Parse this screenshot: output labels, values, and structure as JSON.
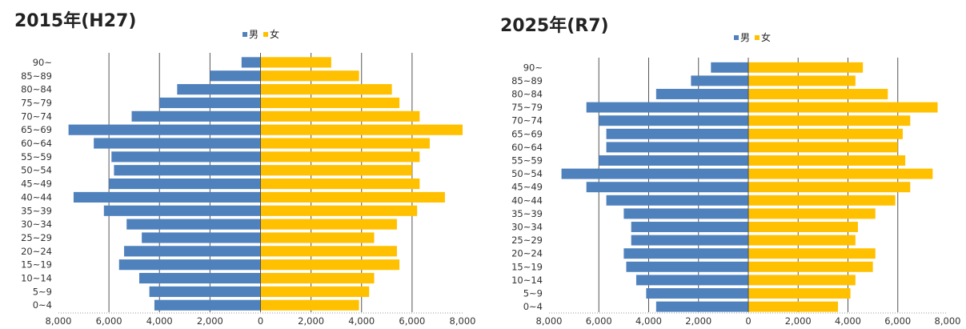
{
  "colors": {
    "male": "#4f81bd",
    "female": "#ffc000",
    "grid": "#555555"
  },
  "chart_data": [
    {
      "type": "bar",
      "orientation": "horizontal",
      "title": "2015年(H27)",
      "legend": [
        "男",
        "女"
      ],
      "categories": [
        "0~4",
        "5~9",
        "10~14",
        "15~19",
        "20~24",
        "25~29",
        "30~34",
        "35~39",
        "40~44",
        "45~49",
        "50~54",
        "55~59",
        "60~64",
        "65~69",
        "70~74",
        "75~79",
        "80~84",
        "85~89",
        "90~"
      ],
      "series": [
        {
          "name": "男",
          "values": [
            4200,
            4400,
            4800,
            5600,
            5400,
            4700,
            5300,
            6200,
            7400,
            6000,
            5800,
            5900,
            6600,
            7600,
            5100,
            4000,
            3300,
            2000,
            750
          ]
        },
        {
          "name": "女",
          "values": [
            3900,
            4300,
            4500,
            5500,
            5400,
            4500,
            5400,
            6200,
            7300,
            6300,
            6000,
            6300,
            6700,
            8000,
            6300,
            5500,
            5200,
            3900,
            2800
          ]
        }
      ],
      "xlim": [
        -8000,
        8000
      ],
      "xticks": [
        "8,000",
        "6,000",
        "4,000",
        "2,000",
        "0",
        "2,000",
        "4,000",
        "6,000",
        "8,000"
      ]
    },
    {
      "type": "bar",
      "orientation": "horizontal",
      "title": "2025年(R7)",
      "legend": [
        "男",
        "女"
      ],
      "categories": [
        "0~4",
        "5~9",
        "10~14",
        "15~19",
        "20~24",
        "25~29",
        "30~34",
        "35~39",
        "40~44",
        "45~49",
        "50~54",
        "55~59",
        "60~64",
        "65~69",
        "70~74",
        "75~79",
        "80~84",
        "85~89",
        "90~"
      ],
      "series": [
        {
          "name": "男",
          "values": [
            3700,
            4100,
            4500,
            4900,
            5000,
            4700,
            4700,
            5000,
            5700,
            6500,
            7500,
            6000,
            5700,
            5700,
            6000,
            6500,
            3700,
            2300,
            1500
          ]
        },
        {
          "name": "女",
          "values": [
            3600,
            4100,
            4300,
            5000,
            5100,
            4300,
            4400,
            5100,
            5900,
            6500,
            7400,
            6300,
            6000,
            6200,
            6500,
            7600,
            5600,
            4300,
            4600
          ]
        }
      ],
      "xlim": [
        -8000,
        8000
      ],
      "xticks": [
        "8,000",
        "6,000",
        "4,000",
        "2,000",
        "0",
        "2,000",
        "4,000",
        "6,000",
        "8,000"
      ]
    }
  ]
}
